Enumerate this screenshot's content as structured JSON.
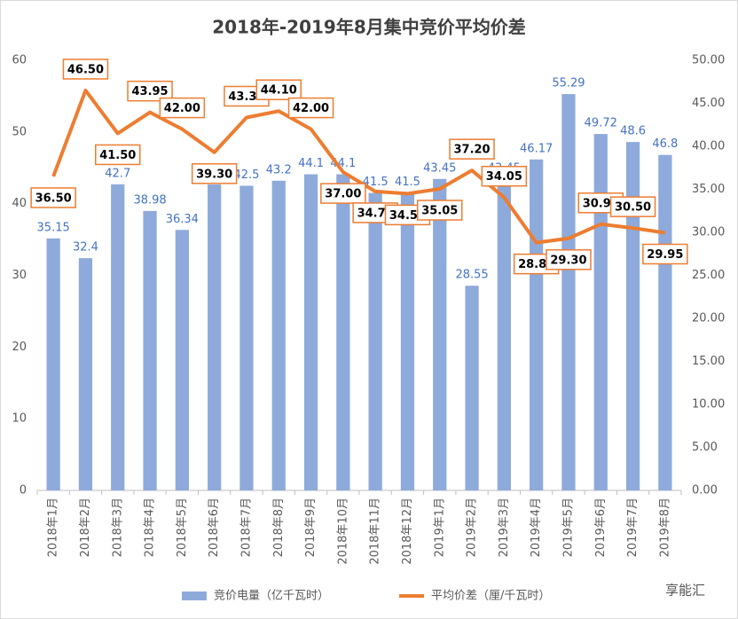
{
  "chart_data": {
    "type": "bar-line",
    "title": "2018年-2019年8月集中竞价平均价差",
    "watermark": "享能汇",
    "categories": [
      "2018年1月",
      "2018年2月",
      "2018年3月",
      "2018年4月",
      "2018年5月",
      "2018年6月",
      "2018年7月",
      "2018年8月",
      "2018年9月",
      "2018年10月",
      "2018年11月",
      "2018年12月",
      "2019年1月",
      "2019年2月",
      "2019年3月",
      "2019年4月",
      "2019年5月",
      "2019年6月",
      "2019年7月",
      "2019年8月"
    ],
    "series": [
      {
        "name": "竞价电量（亿千瓦时）",
        "type": "bar",
        "color": "#8eaadb",
        "values": [
          35.15,
          32.4,
          42.7,
          38.98,
          36.34,
          42.68,
          42.5,
          43.2,
          44.1,
          44.1,
          41.5,
          41.5,
          43.45,
          28.55,
          43.45,
          46.17,
          55.29,
          49.72,
          48.6,
          46.8
        ]
      },
      {
        "name": "平均价差（厘/千瓦时）",
        "type": "line",
        "axis": "y2",
        "color": "#ed7d31",
        "values": [
          36.5,
          46.5,
          41.5,
          43.95,
          42.0,
          39.3,
          43.35,
          44.1,
          42.0,
          37.0,
          34.75,
          34.5,
          35.05,
          37.2,
          34.05,
          28.8,
          29.3,
          30.95,
          30.5,
          29.95
        ],
        "value_labels": [
          "36.50",
          "46.50",
          "41.50",
          "43.95",
          "42.00",
          "39.30",
          "43.35",
          "44.10",
          "42.00",
          "37.00",
          "34.75",
          "34.50",
          "35.05",
          "37.20",
          "34.05",
          "28.80",
          "29.30",
          "30.95",
          "30.50",
          "29.95"
        ]
      }
    ],
    "ylim": [
      0,
      60
    ],
    "yticks": [
      0,
      10,
      20,
      30,
      40,
      50,
      60
    ],
    "y2lim": [
      0,
      50
    ],
    "y2ticks": [
      {
        "value": 0,
        "label": "0.00"
      },
      {
        "value": 5,
        "label": "5.00"
      },
      {
        "value": 10,
        "label": "10.00"
      },
      {
        "value": 15,
        "label": "15.00"
      },
      {
        "value": 20,
        "label": "20.00"
      },
      {
        "value": 25,
        "label": "25.00"
      },
      {
        "value": 30,
        "label": "30.00"
      },
      {
        "value": 35,
        "label": "35.00"
      },
      {
        "value": 40,
        "label": "40.00"
      },
      {
        "value": 45,
        "label": "45.00"
      },
      {
        "value": 50,
        "label": "50.00"
      }
    ],
    "grid": false,
    "legend": "bottom"
  }
}
